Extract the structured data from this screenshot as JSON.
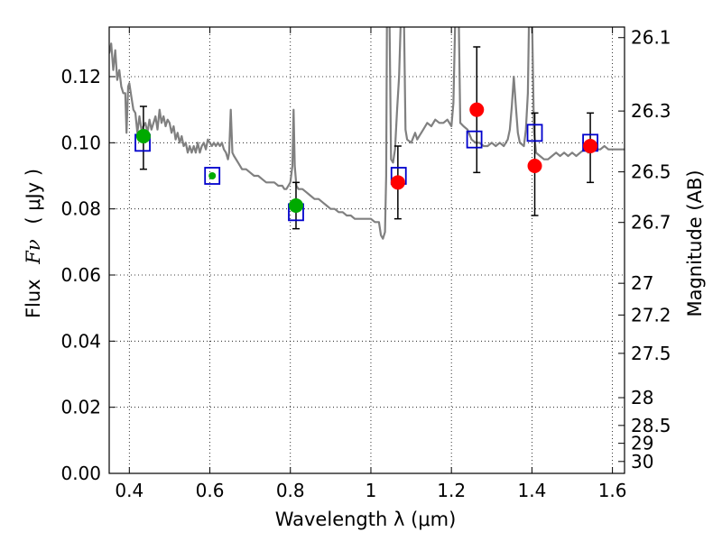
{
  "chart_data": {
    "type": "scatter",
    "xlabel": "Wavelength  λ (μm)",
    "ylabel_prefix": "Flux",
    "ylabel_symbol": "Fν",
    "ylabel_unit": "( μJy )",
    "ylabel_right": "Magnitude (AB)",
    "xlim": [
      0.35,
      1.63
    ],
    "ylim": [
      0.0,
      0.135
    ],
    "x_ticks": [
      0.4,
      0.6,
      0.8,
      1.0,
      1.2,
      1.4,
      1.6
    ],
    "x_tick_labels": [
      "0.4",
      "0.6",
      "0.8",
      "1",
      "1.2",
      "1.4",
      "1.6"
    ],
    "y_ticks": [
      0.0,
      0.02,
      0.04,
      0.06,
      0.08,
      0.1,
      0.12
    ],
    "y_tick_labels": [
      "0.00",
      "0.02",
      "0.04",
      "0.06",
      "0.08",
      "0.10",
      "0.12"
    ],
    "right_ticks": [
      {
        "label": "26.1",
        "flux": 0.1318
      },
      {
        "label": "26.3",
        "flux": 0.1096
      },
      {
        "label": "26.5",
        "flux": 0.0912
      },
      {
        "label": "26.7",
        "flux": 0.0759
      },
      {
        "label": "27",
        "flux": 0.0575
      },
      {
        "label": "27.2",
        "flux": 0.0479
      },
      {
        "label": "27.5",
        "flux": 0.0363
      },
      {
        "label": "28",
        "flux": 0.0229
      },
      {
        "label": "28.5",
        "flux": 0.0145
      },
      {
        "label": "29",
        "flux": 0.0091
      },
      {
        "label": "30",
        "flux": 0.0036
      }
    ],
    "grid": true,
    "grid_style": "dotted",
    "colors": {
      "model": "#808080",
      "model_points": "#0000cc",
      "detections": "#ff0000",
      "optical_points": "#00aa00",
      "errorbars": "#000000"
    },
    "model_spectrum": [
      [
        0.35,
        0.127
      ],
      [
        0.355,
        0.13
      ],
      [
        0.36,
        0.122
      ],
      [
        0.365,
        0.128
      ],
      [
        0.37,
        0.119
      ],
      [
        0.375,
        0.122
      ],
      [
        0.38,
        0.117
      ],
      [
        0.385,
        0.115
      ],
      [
        0.39,
        0.115
      ],
      [
        0.393,
        0.103
      ],
      [
        0.397,
        0.117
      ],
      [
        0.4,
        0.118
      ],
      [
        0.405,
        0.114
      ],
      [
        0.41,
        0.11
      ],
      [
        0.415,
        0.109
      ],
      [
        0.42,
        0.103
      ],
      [
        0.425,
        0.108
      ],
      [
        0.43,
        0.104
      ],
      [
        0.435,
        0.105
      ],
      [
        0.44,
        0.106
      ],
      [
        0.445,
        0.103
      ],
      [
        0.45,
        0.107
      ],
      [
        0.455,
        0.104
      ],
      [
        0.46,
        0.106
      ],
      [
        0.465,
        0.108
      ],
      [
        0.47,
        0.104
      ],
      [
        0.475,
        0.11
      ],
      [
        0.48,
        0.106
      ],
      [
        0.485,
        0.108
      ],
      [
        0.49,
        0.105
      ],
      [
        0.495,
        0.107
      ],
      [
        0.5,
        0.106
      ],
      [
        0.505,
        0.103
      ],
      [
        0.51,
        0.105
      ],
      [
        0.515,
        0.101
      ],
      [
        0.52,
        0.103
      ],
      [
        0.525,
        0.1
      ],
      [
        0.53,
        0.102
      ],
      [
        0.535,
        0.099
      ],
      [
        0.54,
        0.1
      ],
      [
        0.545,
        0.097
      ],
      [
        0.55,
        0.099
      ],
      [
        0.555,
        0.097
      ],
      [
        0.56,
        0.099
      ],
      [
        0.565,
        0.097
      ],
      [
        0.57,
        0.1
      ],
      [
        0.575,
        0.097
      ],
      [
        0.58,
        0.099
      ],
      [
        0.585,
        0.1
      ],
      [
        0.59,
        0.098
      ],
      [
        0.595,
        0.101
      ],
      [
        0.6,
        0.1
      ],
      [
        0.605,
        0.099
      ],
      [
        0.61,
        0.1
      ],
      [
        0.615,
        0.099
      ],
      [
        0.62,
        0.1
      ],
      [
        0.625,
        0.099
      ],
      [
        0.63,
        0.1
      ],
      [
        0.635,
        0.098
      ],
      [
        0.64,
        0.097
      ],
      [
        0.645,
        0.095
      ],
      [
        0.648,
        0.097
      ],
      [
        0.652,
        0.11
      ],
      [
        0.656,
        0.097
      ],
      [
        0.66,
        0.096
      ],
      [
        0.67,
        0.094
      ],
      [
        0.68,
        0.092
      ],
      [
        0.69,
        0.092
      ],
      [
        0.7,
        0.091
      ],
      [
        0.71,
        0.09
      ],
      [
        0.72,
        0.09
      ],
      [
        0.73,
        0.089
      ],
      [
        0.74,
        0.088
      ],
      [
        0.75,
        0.088
      ],
      [
        0.76,
        0.088
      ],
      [
        0.77,
        0.087
      ],
      [
        0.78,
        0.087
      ],
      [
        0.785,
        0.086
      ],
      [
        0.79,
        0.086
      ],
      [
        0.795,
        0.087
      ],
      [
        0.8,
        0.088
      ],
      [
        0.805,
        0.093
      ],
      [
        0.808,
        0.11
      ],
      [
        0.811,
        0.093
      ],
      [
        0.815,
        0.087
      ],
      [
        0.82,
        0.086
      ],
      [
        0.83,
        0.086
      ],
      [
        0.84,
        0.085
      ],
      [
        0.85,
        0.084
      ],
      [
        0.86,
        0.083
      ],
      [
        0.87,
        0.083
      ],
      [
        0.88,
        0.082
      ],
      [
        0.89,
        0.081
      ],
      [
        0.9,
        0.08
      ],
      [
        0.91,
        0.08
      ],
      [
        0.92,
        0.079
      ],
      [
        0.93,
        0.079
      ],
      [
        0.94,
        0.078
      ],
      [
        0.95,
        0.078
      ],
      [
        0.96,
        0.077
      ],
      [
        0.97,
        0.077
      ],
      [
        0.98,
        0.077
      ],
      [
        0.99,
        0.077
      ],
      [
        1.0,
        0.077
      ],
      [
        1.01,
        0.076
      ],
      [
        1.02,
        0.076
      ],
      [
        1.025,
        0.072
      ],
      [
        1.03,
        0.071
      ],
      [
        1.035,
        0.073
      ],
      [
        1.038,
        0.09
      ],
      [
        1.04,
        0.14
      ],
      [
        1.046,
        0.14
      ],
      [
        1.05,
        0.095
      ],
      [
        1.055,
        0.094
      ],
      [
        1.06,
        0.098
      ],
      [
        1.065,
        0.11
      ],
      [
        1.07,
        0.12
      ],
      [
        1.075,
        0.14
      ],
      [
        1.082,
        0.14
      ],
      [
        1.086,
        0.104
      ],
      [
        1.09,
        0.101
      ],
      [
        1.1,
        0.1
      ],
      [
        1.11,
        0.103
      ],
      [
        1.115,
        0.101
      ],
      [
        1.12,
        0.102
      ],
      [
        1.13,
        0.104
      ],
      [
        1.14,
        0.106
      ],
      [
        1.15,
        0.105
      ],
      [
        1.16,
        0.107
      ],
      [
        1.17,
        0.106
      ],
      [
        1.18,
        0.106
      ],
      [
        1.19,
        0.107
      ],
      [
        1.2,
        0.105
      ],
      [
        1.205,
        0.112
      ],
      [
        1.21,
        0.14
      ],
      [
        1.218,
        0.14
      ],
      [
        1.222,
        0.106
      ],
      [
        1.23,
        0.105
      ],
      [
        1.24,
        0.104
      ],
      [
        1.25,
        0.101
      ],
      [
        1.26,
        0.1
      ],
      [
        1.27,
        0.1
      ],
      [
        1.28,
        0.099
      ],
      [
        1.29,
        0.099
      ],
      [
        1.3,
        0.1
      ],
      [
        1.31,
        0.099
      ],
      [
        1.32,
        0.1
      ],
      [
        1.33,
        0.099
      ],
      [
        1.34,
        0.101
      ],
      [
        1.345,
        0.104
      ],
      [
        1.35,
        0.111
      ],
      [
        1.355,
        0.12
      ],
      [
        1.36,
        0.111
      ],
      [
        1.365,
        0.103
      ],
      [
        1.37,
        0.1
      ],
      [
        1.38,
        0.099
      ],
      [
        1.385,
        0.104
      ],
      [
        1.39,
        0.115
      ],
      [
        1.393,
        0.14
      ],
      [
        1.4,
        0.14
      ],
      [
        1.405,
        0.104
      ],
      [
        1.41,
        0.097
      ],
      [
        1.42,
        0.096
      ],
      [
        1.43,
        0.095
      ],
      [
        1.44,
        0.095
      ],
      [
        1.45,
        0.096
      ],
      [
        1.46,
        0.097
      ],
      [
        1.47,
        0.096
      ],
      [
        1.48,
        0.097
      ],
      [
        1.49,
        0.096
      ],
      [
        1.5,
        0.097
      ],
      [
        1.51,
        0.096
      ],
      [
        1.52,
        0.097
      ],
      [
        1.53,
        0.098
      ],
      [
        1.54,
        0.097
      ],
      [
        1.55,
        0.098
      ],
      [
        1.56,
        0.098
      ],
      [
        1.57,
        0.098
      ],
      [
        1.58,
        0.099
      ],
      [
        1.59,
        0.098
      ],
      [
        1.6,
        0.098
      ],
      [
        1.61,
        0.098
      ],
      [
        1.62,
        0.098
      ],
      [
        1.63,
        0.098
      ]
    ],
    "model_points": [
      {
        "x": 0.433,
        "y": 0.1
      },
      {
        "x": 0.606,
        "y": 0.09
      },
      {
        "x": 0.814,
        "y": 0.079
      },
      {
        "x": 1.069,
        "y": 0.09
      },
      {
        "x": 1.257,
        "y": 0.101
      },
      {
        "x": 1.407,
        "y": 0.103
      },
      {
        "x": 1.545,
        "y": 0.1
      }
    ],
    "detections": [
      {
        "x": 1.067,
        "y": 0.088,
        "err_low": 0.077,
        "err_high": 0.099
      },
      {
        "x": 1.263,
        "y": 0.11,
        "err_low": 0.091,
        "err_high": 0.129
      },
      {
        "x": 1.407,
        "y": 0.093,
        "err_low": 0.078,
        "err_high": 0.109
      },
      {
        "x": 1.545,
        "y": 0.099,
        "err_low": 0.088,
        "err_high": 0.109
      }
    ],
    "optical_points": [
      {
        "x": 0.435,
        "y": 0.102,
        "err_low": 0.092,
        "err_high": 0.111
      },
      {
        "x": 0.606,
        "y": 0.09
      },
      {
        "x": 0.814,
        "y": 0.081,
        "err_low": 0.074,
        "err_high": 0.088
      }
    ]
  }
}
